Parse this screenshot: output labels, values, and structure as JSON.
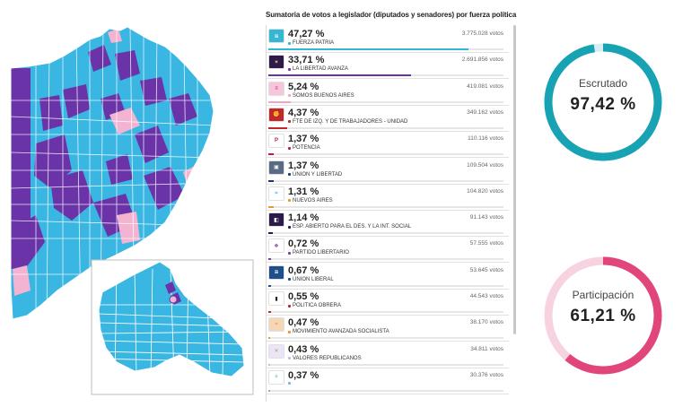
{
  "results": {
    "title": "Sumatoria de votos a legislador (diputados y senadores) por fuerza política",
    "parties": [
      {
        "pct": "47,27 %",
        "name": "FUERZA PATRIA",
        "votes": "3.775.028 votos",
        "share": 47.27,
        "color": "#35b6d3",
        "logo": "fuerza-patria-logo"
      },
      {
        "pct": "33,71 %",
        "name": "LA LIBERTAD AVANZA",
        "votes": "2.691.856 votos",
        "share": 33.71,
        "color": "#6a34a8",
        "logo": "la-libertad-avanza-logo"
      },
      {
        "pct": "5,24 %",
        "name": "SOMOS BUENOS AIRES",
        "votes": "419.081 votos",
        "share": 5.24,
        "color": "#f0a5c7",
        "logo": "somos-buenos-aires-logo"
      },
      {
        "pct": "4,37 %",
        "name": "FTE DE IZQ. Y DE TRABAJADORES - UNIDAD",
        "votes": "349.162 votos",
        "share": 4.37,
        "color": "#c1272d",
        "logo": "frente-izquierda-logo"
      },
      {
        "pct": "1,37 %",
        "name": "POTENCIA",
        "votes": "110.116 votos",
        "share": 1.37,
        "color": "#c2185b",
        "logo": "potencia-logo"
      },
      {
        "pct": "1,37 %",
        "name": "UNION Y LIBERTAD",
        "votes": "109.504 votos",
        "share": 1.37,
        "color": "#1a3a6b",
        "logo": "union-y-libertad-logo"
      },
      {
        "pct": "1,31 %",
        "name": "NUEVOS AIRES",
        "votes": "104.820 votos",
        "share": 1.31,
        "color": "#e89a2c",
        "logo": "nuevos-aires-logo"
      },
      {
        "pct": "1,14 %",
        "name": "ESP. ABIERTO PARA EL DES. Y LA INT. SOCIAL",
        "votes": "91.143 votos",
        "share": 1.14,
        "color": "#2b1a4a",
        "logo": "espacio-abierto-logo"
      },
      {
        "pct": "0,72 %",
        "name": "PARTIDO LIBERTARIO",
        "votes": "57.555 votos",
        "share": 0.72,
        "color": "#7b3fa0",
        "logo": "partido-libertario-logo"
      },
      {
        "pct": "0,67 %",
        "name": "UNION LIBERAL",
        "votes": "53.645 votos",
        "share": 0.67,
        "color": "#1e4f8a",
        "logo": "union-liberal-logo"
      },
      {
        "pct": "0,55 %",
        "name": "POLITICA OBRERA",
        "votes": "44.543 votos",
        "share": 0.55,
        "color": "#c1272d",
        "logo": "politica-obrera-logo"
      },
      {
        "pct": "0,47 %",
        "name": "MOVIMIENTO AVANZADA SOCIALISTA",
        "votes": "38.170 votos",
        "share": 0.47,
        "color": "#e89a2c",
        "logo": "movimiento-avanzada-socialista-logo"
      },
      {
        "pct": "0,43 %",
        "name": "VALORES REPUBLICANOS",
        "votes": "34.811 votos",
        "share": 0.43,
        "color": "#c7b6e6",
        "logo": "valores-republicanos-logo"
      },
      {
        "pct": "0,37 %",
        "name": "",
        "votes": "30.376 votos",
        "share": 0.37,
        "color": "#7db7d8",
        "logo": "partial-party-logo"
      }
    ]
  },
  "escrutado": {
    "label": "Escrutado",
    "value": "97,42 %",
    "fraction": 0.9742,
    "color": "#18a3b5",
    "track": "#d7eef2"
  },
  "participacion": {
    "label": "Participación",
    "value": "61,21 %",
    "fraction": 0.6121,
    "color": "#e0457b",
    "track": "#f7d2e0"
  },
  "map": {
    "colors": {
      "fuerza_patria": "#39b6e2",
      "libertad_avanza": "#6a34a8",
      "somos": "#f3b4d2"
    }
  }
}
